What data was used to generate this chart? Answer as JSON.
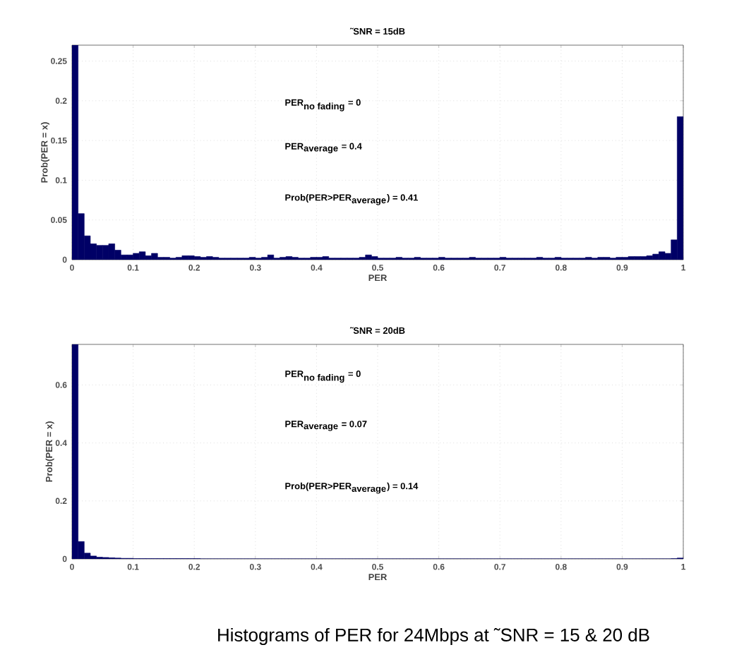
{
  "chart_data": [
    {
      "type": "histogram",
      "title": "˜SNR = 15dB",
      "xlabel": "PER",
      "ylabel": "Prob(PER = x)",
      "color": "#000066",
      "grid": true,
      "bins": [
        0,
        0.01,
        0.02,
        0.03,
        0.04,
        0.05,
        0.06,
        0.07,
        0.08,
        0.09,
        0.1,
        0.11,
        0.12,
        0.13,
        0.14,
        0.15,
        0.16,
        0.17,
        0.18,
        0.19,
        0.2,
        0.21,
        0.22,
        0.23,
        0.24,
        0.25,
        0.26,
        0.27,
        0.28,
        0.29,
        0.3,
        0.31,
        0.32,
        0.33,
        0.34,
        0.35,
        0.36,
        0.37,
        0.38,
        0.39,
        0.4,
        0.41,
        0.42,
        0.43,
        0.44,
        0.45,
        0.46,
        0.47,
        0.48,
        0.49,
        0.5,
        0.51,
        0.52,
        0.53,
        0.54,
        0.55,
        0.56,
        0.57,
        0.58,
        0.59,
        0.6,
        0.61,
        0.62,
        0.63,
        0.64,
        0.65,
        0.66,
        0.67,
        0.68,
        0.69,
        0.7,
        0.71,
        0.72,
        0.73,
        0.74,
        0.75,
        0.76,
        0.77,
        0.78,
        0.79,
        0.8,
        0.81,
        0.82,
        0.83,
        0.84,
        0.85,
        0.86,
        0.87,
        0.88,
        0.89,
        0.9,
        0.91,
        0.92,
        0.93,
        0.94,
        0.95,
        0.96,
        0.97,
        0.98,
        0.99,
        1
      ],
      "values": [
        0.27,
        0.058,
        0.03,
        0.02,
        0.018,
        0.018,
        0.02,
        0.012,
        0.006,
        0.006,
        0.008,
        0.01,
        0.005,
        0.008,
        0.003,
        0.003,
        0.002,
        0.003,
        0.005,
        0.005,
        0.004,
        0.003,
        0.004,
        0.003,
        0.002,
        0.002,
        0.002,
        0.002,
        0.002,
        0.003,
        0.002,
        0.003,
        0.006,
        0.002,
        0.003,
        0.004,
        0.003,
        0.002,
        0.002,
        0.003,
        0.003,
        0.004,
        0.002,
        0.002,
        0.002,
        0.002,
        0.002,
        0.003,
        0.006,
        0.004,
        0.002,
        0.002,
        0.002,
        0.003,
        0.002,
        0.002,
        0.003,
        0.002,
        0.002,
        0.002,
        0.003,
        0.002,
        0.002,
        0.002,
        0.002,
        0.003,
        0.002,
        0.002,
        0.002,
        0.002,
        0.003,
        0.002,
        0.002,
        0.002,
        0.002,
        0.002,
        0.003,
        0.002,
        0.002,
        0.003,
        0.002,
        0.002,
        0.002,
        0.002,
        0.003,
        0.002,
        0.003,
        0.003,
        0.002,
        0.003,
        0.003,
        0.004,
        0.004,
        0.004,
        0.005,
        0.007,
        0.01,
        0.008,
        0.025,
        0.18
      ],
      "xlim": [
        0,
        1
      ],
      "ylim": [
        0,
        0.27
      ],
      "xticks": [
        0,
        0.1,
        0.2,
        0.3,
        0.4,
        0.5,
        0.6,
        0.7,
        0.8,
        0.9,
        1
      ],
      "yticks": [
        0,
        0.05,
        0.1,
        0.15,
        0.2,
        0.25
      ],
      "annotations": [
        "\\mbox{PER}_{\\mbox{no fading}}\\mbox{ = 0}",
        "\\mbox{PER}_{\\mbox{average}}\\mbox{ = 0.4}",
        "\\mbox{Prob(PER>PER}_{\\mbox{average}}\\mbox{) = 0.41}"
      ]
    },
    {
      "type": "histogram",
      "title": "˜SNR = 20dB",
      "xlabel": "PER",
      "ylabel": "Prob(PER = x)",
      "color": "#000066",
      "grid": true,
      "bins": [
        0,
        0.01,
        0.02,
        0.03,
        0.04,
        0.05,
        0.06,
        0.07,
        0.08,
        0.09,
        0.1,
        0.11,
        0.12,
        0.13,
        0.14,
        0.15,
        0.16,
        0.17,
        0.18,
        0.19,
        0.2,
        0.21,
        0.22,
        0.23,
        0.24,
        0.25,
        0.26,
        0.27,
        0.28,
        0.29,
        0.3,
        0.31,
        0.32,
        0.33,
        0.34,
        0.35,
        0.36,
        0.37,
        0.38,
        0.39,
        0.4,
        0.41,
        0.42,
        0.43,
        0.44,
        0.45,
        0.46,
        0.47,
        0.48,
        0.49,
        0.5,
        0.51,
        0.52,
        0.53,
        0.54,
        0.55,
        0.56,
        0.57,
        0.58,
        0.59,
        0.6,
        0.61,
        0.62,
        0.63,
        0.64,
        0.65,
        0.66,
        0.67,
        0.68,
        0.69,
        0.7,
        0.71,
        0.72,
        0.73,
        0.74,
        0.75,
        0.76,
        0.77,
        0.78,
        0.79,
        0.8,
        0.81,
        0.82,
        0.83,
        0.84,
        0.85,
        0.86,
        0.87,
        0.88,
        0.89,
        0.9,
        0.91,
        0.92,
        0.93,
        0.94,
        0.95,
        0.96,
        0.97,
        0.98,
        0.99,
        1
      ],
      "values": [
        0.74,
        0.06,
        0.02,
        0.01,
        0.006,
        0.005,
        0.004,
        0.003,
        0.002,
        0.002,
        0.001,
        0.001,
        0.001,
        0.001,
        0.001,
        0.001,
        0.001,
        0.001,
        0.001,
        0.001,
        0.001,
        0,
        0,
        0,
        0,
        0,
        0,
        0,
        0,
        0,
        0,
        0,
        0,
        0,
        0,
        0,
        0,
        0,
        0,
        0,
        0,
        0,
        0,
        0,
        0,
        0,
        0,
        0,
        0,
        0,
        0,
        0,
        0,
        0,
        0,
        0,
        0,
        0,
        0,
        0,
        0,
        0,
        0,
        0,
        0,
        0,
        0,
        0,
        0,
        0,
        0,
        0,
        0,
        0,
        0,
        0,
        0,
        0,
        0,
        0,
        0,
        0,
        0,
        0,
        0,
        0,
        0,
        0,
        0,
        0,
        0,
        0,
        0,
        0,
        0,
        0,
        0,
        0,
        0.001,
        0.003
      ],
      "xlim": [
        0,
        1
      ],
      "ylim": [
        0,
        0.74
      ],
      "xticks": [
        0,
        0.1,
        0.2,
        0.3,
        0.4,
        0.5,
        0.6,
        0.7,
        0.8,
        0.9,
        1
      ],
      "yticks": [
        0,
        0.2,
        0.4,
        0.6
      ],
      "annotations": [
        "\\mbox{PER}_{\\mbox{no fading}}\\mbox{ = 0}",
        "\\mbox{PER}_{\\mbox{average}}\\mbox{ = 0.07}",
        "\\mbox{Prob(PER>PER}_{\\mbox{average}}\\mbox{) = 0.14}",
        "Histograms of PER for 24Mbps at ˜SNR = 15 & 20 dB"
      ]
    }
  ]
}
